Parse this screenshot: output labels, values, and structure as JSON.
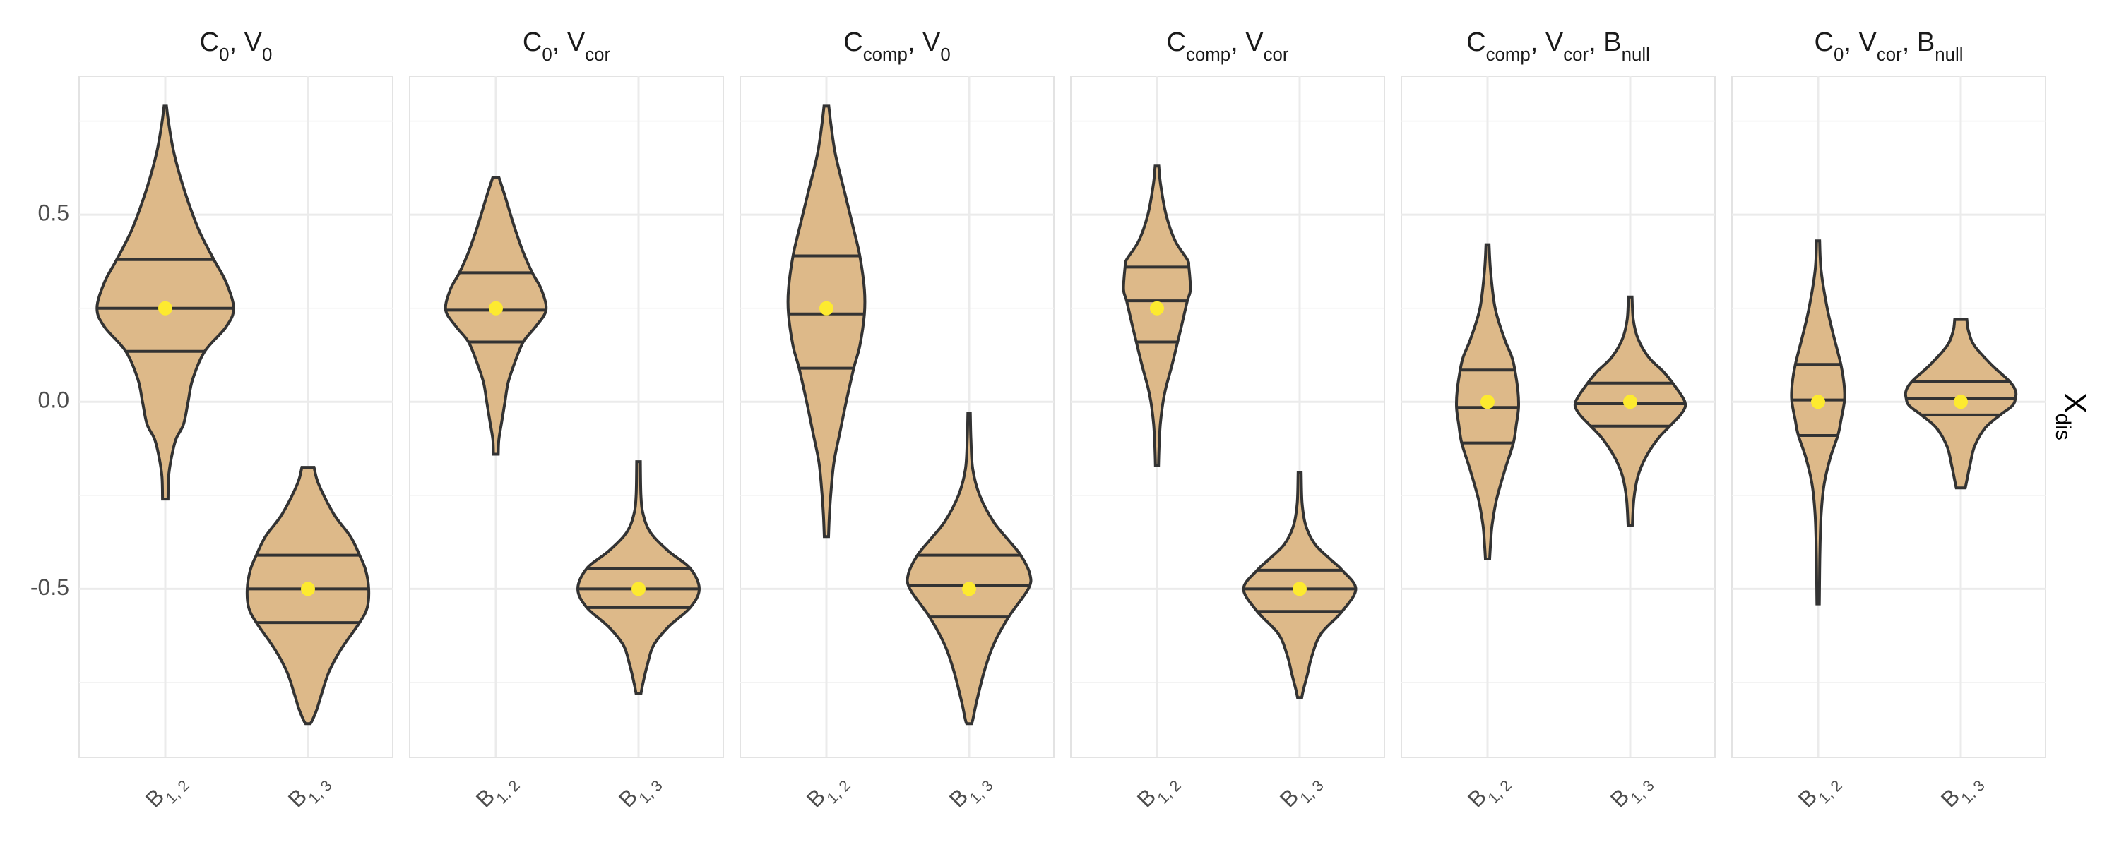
{
  "chart_data": {
    "type": "violin",
    "y_label": {
      "main": "X",
      "sub": "dis"
    },
    "y_position": "right",
    "ylim": [
      -0.95,
      0.87
    ],
    "y_ticks": [
      0.5,
      0.0,
      -0.5
    ],
    "y_tick_labels": [
      "0.5",
      "0.0",
      "-0.5"
    ],
    "y_minor_ticks": [
      0.75,
      0.25,
      -0.25,
      -0.75
    ],
    "x_categories": [
      {
        "main": "B",
        "sub": "1, 2"
      },
      {
        "main": "B",
        "sub": "1, 3"
      }
    ],
    "fill_color": "#ddb989",
    "outline_color": "#333333",
    "mean_color": "#fdea2f",
    "panels": [
      {
        "title": [
          {
            "main": "C",
            "sub": "0"
          },
          {
            "main": "V",
            "sub": "0"
          }
        ],
        "violins": [
          {
            "category": 0,
            "min": -0.26,
            "max": 0.79,
            "q1": 0.135,
            "median": 0.25,
            "q3": 0.38,
            "mean": 0.25,
            "profile": [
              [
                0.79,
                0.004
              ],
              [
                0.74,
                0.012
              ],
              [
                0.66,
                0.03
              ],
              [
                0.56,
                0.065
              ],
              [
                0.46,
                0.11
              ],
              [
                0.38,
                0.16
              ],
              [
                0.32,
                0.2
              ],
              [
                0.25,
                0.225
              ],
              [
                0.2,
                0.2
              ],
              [
                0.135,
                0.13
              ],
              [
                0.06,
                0.09
              ],
              [
                0.0,
                0.075
              ],
              [
                -0.06,
                0.06
              ],
              [
                -0.1,
                0.035
              ],
              [
                -0.15,
                0.02
              ],
              [
                -0.2,
                0.011
              ],
              [
                -0.26,
                0.009
              ]
            ]
          },
          {
            "category": 1,
            "min": -0.86,
            "max": -0.175,
            "q1": -0.59,
            "median": -0.5,
            "q3": -0.41,
            "mean": -0.5,
            "profile": [
              [
                -0.175,
                0.02
              ],
              [
                -0.22,
                0.035
              ],
              [
                -0.3,
                0.085
              ],
              [
                -0.36,
                0.14
              ],
              [
                -0.41,
                0.17
              ],
              [
                -0.45,
                0.19
              ],
              [
                -0.5,
                0.2
              ],
              [
                -0.55,
                0.195
              ],
              [
                -0.59,
                0.17
              ],
              [
                -0.66,
                0.11
              ],
              [
                -0.72,
                0.07
              ],
              [
                -0.78,
                0.045
              ],
              [
                -0.82,
                0.03
              ],
              [
                -0.85,
                0.015
              ],
              [
                -0.86,
                0.008
              ]
            ]
          }
        ]
      },
      {
        "title": [
          {
            "main": "C",
            "sub": "0"
          },
          {
            "main": "V",
            "sub": "cor"
          }
        ],
        "violins": [
          {
            "category": 0,
            "min": -0.14,
            "max": 0.6,
            "q1": 0.16,
            "median": 0.245,
            "q3": 0.345,
            "mean": 0.25,
            "profile": [
              [
                0.6,
                0.01
              ],
              [
                0.55,
                0.03
              ],
              [
                0.47,
                0.06
              ],
              [
                0.4,
                0.09
              ],
              [
                0.345,
                0.12
              ],
              [
                0.3,
                0.15
              ],
              [
                0.245,
                0.165
              ],
              [
                0.2,
                0.13
              ],
              [
                0.16,
                0.09
              ],
              [
                0.1,
                0.06
              ],
              [
                0.05,
                0.04
              ],
              [
                0.0,
                0.03
              ],
              [
                -0.05,
                0.02
              ],
              [
                -0.1,
                0.01
              ],
              [
                -0.14,
                0.008
              ]
            ]
          },
          {
            "category": 1,
            "min": -0.78,
            "max": -0.16,
            "q1": -0.55,
            "median": -0.5,
            "q3": -0.445,
            "mean": -0.5,
            "profile": [
              [
                -0.16,
                0.006
              ],
              [
                -0.25,
                0.008
              ],
              [
                -0.3,
                0.015
              ],
              [
                -0.35,
                0.04
              ],
              [
                -0.4,
                0.1
              ],
              [
                -0.445,
                0.17
              ],
              [
                -0.5,
                0.2
              ],
              [
                -0.55,
                0.17
              ],
              [
                -0.6,
                0.1
              ],
              [
                -0.65,
                0.05
              ],
              [
                -0.7,
                0.03
              ],
              [
                -0.75,
                0.015
              ],
              [
                -0.78,
                0.008
              ]
            ]
          }
        ]
      },
      {
        "title": [
          {
            "main": "C",
            "sub": "comp"
          },
          {
            "main": "V",
            "sub": "0"
          }
        ],
        "violins": [
          {
            "category": 0,
            "min": -0.36,
            "max": 0.79,
            "q1": 0.09,
            "median": 0.235,
            "q3": 0.39,
            "mean": 0.25,
            "profile": [
              [
                0.79,
                0.008
              ],
              [
                0.74,
                0.015
              ],
              [
                0.66,
                0.03
              ],
              [
                0.56,
                0.06
              ],
              [
                0.46,
                0.09
              ],
              [
                0.39,
                0.11
              ],
              [
                0.3,
                0.125
              ],
              [
                0.235,
                0.125
              ],
              [
                0.15,
                0.11
              ],
              [
                0.09,
                0.09
              ],
              [
                0.0,
                0.065
              ],
              [
                -0.08,
                0.045
              ],
              [
                -0.16,
                0.025
              ],
              [
                -0.24,
                0.015
              ],
              [
                -0.3,
                0.01
              ],
              [
                -0.36,
                0.007
              ]
            ]
          },
          {
            "category": 1,
            "min": -0.86,
            "max": -0.03,
            "q1": -0.575,
            "median": -0.49,
            "q3": -0.41,
            "mean": -0.5,
            "profile": [
              [
                -0.03,
                0.004
              ],
              [
                -0.1,
                0.006
              ],
              [
                -0.18,
                0.012
              ],
              [
                -0.25,
                0.035
              ],
              [
                -0.32,
                0.08
              ],
              [
                -0.37,
                0.13
              ],
              [
                -0.41,
                0.17
              ],
              [
                -0.46,
                0.2
              ],
              [
                -0.5,
                0.195
              ],
              [
                -0.575,
                0.13
              ],
              [
                -0.65,
                0.08
              ],
              [
                -0.72,
                0.05
              ],
              [
                -0.8,
                0.025
              ],
              [
                -0.85,
                0.012
              ],
              [
                -0.86,
                0.008
              ]
            ]
          }
        ]
      },
      {
        "title": [
          {
            "main": "C",
            "sub": "comp"
          },
          {
            "main": "V",
            "sub": "cor"
          }
        ],
        "violins": [
          {
            "category": 0,
            "min": -0.17,
            "max": 0.63,
            "q1": 0.16,
            "median": 0.27,
            "q3": 0.36,
            "mean": 0.25,
            "profile": [
              [
                0.63,
                0.006
              ],
              [
                0.58,
                0.012
              ],
              [
                0.5,
                0.03
              ],
              [
                0.43,
                0.06
              ],
              [
                0.38,
                0.1
              ],
              [
                0.36,
                0.105
              ],
              [
                0.3,
                0.11
              ],
              [
                0.27,
                0.1
              ],
              [
                0.2,
                0.08
              ],
              [
                0.16,
                0.068
              ],
              [
                0.1,
                0.05
              ],
              [
                0.04,
                0.03
              ],
              [
                0.0,
                0.02
              ],
              [
                -0.06,
                0.011
              ],
              [
                -0.12,
                0.007
              ],
              [
                -0.17,
                0.005
              ]
            ]
          },
          {
            "category": 1,
            "min": -0.79,
            "max": -0.19,
            "q1": -0.56,
            "median": -0.5,
            "q3": -0.45,
            "mean": -0.5,
            "profile": [
              [
                -0.19,
                0.005
              ],
              [
                -0.27,
                0.008
              ],
              [
                -0.33,
                0.02
              ],
              [
                -0.38,
                0.05
              ],
              [
                -0.42,
                0.1
              ],
              [
                -0.45,
                0.14
              ],
              [
                -0.5,
                0.185
              ],
              [
                -0.56,
                0.14
              ],
              [
                -0.62,
                0.07
              ],
              [
                -0.68,
                0.04
              ],
              [
                -0.73,
                0.025
              ],
              [
                -0.77,
                0.012
              ],
              [
                -0.79,
                0.007
              ]
            ]
          }
        ]
      },
      {
        "title": [
          {
            "main": "C",
            "sub": "comp"
          },
          {
            "main": "V",
            "sub": "cor"
          },
          {
            "main": "B",
            "sub": "null"
          }
        ],
        "violins": [
          {
            "category": 0,
            "min": -0.42,
            "max": 0.42,
            "q1": -0.11,
            "median": -0.015,
            "q3": 0.085,
            "mean": 0.0,
            "profile": [
              [
                0.42,
                0.005
              ],
              [
                0.35,
                0.01
              ],
              [
                0.25,
                0.025
              ],
              [
                0.17,
                0.055
              ],
              [
                0.12,
                0.08
              ],
              [
                0.085,
                0.09
              ],
              [
                0.03,
                0.1
              ],
              [
                -0.015,
                0.102
              ],
              [
                -0.06,
                0.095
              ],
              [
                -0.11,
                0.085
              ],
              [
                -0.18,
                0.058
              ],
              [
                -0.26,
                0.03
              ],
              [
                -0.33,
                0.015
              ],
              [
                -0.38,
                0.01
              ],
              [
                -0.42,
                0.007
              ]
            ]
          },
          {
            "category": 1,
            "min": -0.33,
            "max": 0.28,
            "q1": -0.065,
            "median": -0.005,
            "q3": 0.05,
            "mean": 0.0,
            "profile": [
              [
                0.28,
                0.006
              ],
              [
                0.22,
                0.01
              ],
              [
                0.17,
                0.025
              ],
              [
                0.12,
                0.06
              ],
              [
                0.08,
                0.11
              ],
              [
                0.05,
                0.14
              ],
              [
                0.0,
                0.18
              ],
              [
                -0.03,
                0.17
              ],
              [
                -0.065,
                0.13
              ],
              [
                -0.1,
                0.09
              ],
              [
                -0.15,
                0.05
              ],
              [
                -0.2,
                0.025
              ],
              [
                -0.26,
                0.012
              ],
              [
                -0.33,
                0.007
              ]
            ]
          }
        ]
      },
      {
        "title": [
          {
            "main": "C",
            "sub": "0"
          },
          {
            "main": "V",
            "sub": "cor"
          },
          {
            "main": "B",
            "sub": "null"
          }
        ],
        "violins": [
          {
            "category": 0,
            "min": -0.54,
            "max": 0.43,
            "q1": -0.09,
            "median": 0.005,
            "q3": 0.1,
            "mean": 0.0,
            "profile": [
              [
                0.43,
                0.005
              ],
              [
                0.35,
                0.01
              ],
              [
                0.25,
                0.03
              ],
              [
                0.18,
                0.05
              ],
              [
                0.1,
                0.075
              ],
              [
                0.05,
                0.085
              ],
              [
                0.005,
                0.087
              ],
              [
                -0.05,
                0.075
              ],
              [
                -0.09,
                0.065
              ],
              [
                -0.15,
                0.04
              ],
              [
                -0.22,
                0.02
              ],
              [
                -0.3,
                0.01
              ],
              [
                -0.4,
                0.006
              ],
              [
                -0.54,
                0.004
              ]
            ]
          },
          {
            "category": 1,
            "min": -0.23,
            "max": 0.22,
            "q1": -0.035,
            "median": 0.01,
            "q3": 0.055,
            "mean": 0.0,
            "profile": [
              [
                0.22,
                0.02
              ],
              [
                0.19,
                0.025
              ],
              [
                0.15,
                0.045
              ],
              [
                0.1,
                0.1
              ],
              [
                0.055,
                0.16
              ],
              [
                0.03,
                0.18
              ],
              [
                0.01,
                0.18
              ],
              [
                -0.01,
                0.17
              ],
              [
                -0.035,
                0.13
              ],
              [
                -0.07,
                0.08
              ],
              [
                -0.12,
                0.045
              ],
              [
                -0.17,
                0.03
              ],
              [
                -0.21,
                0.02
              ],
              [
                -0.23,
                0.015
              ]
            ]
          }
        ]
      }
    ]
  }
}
